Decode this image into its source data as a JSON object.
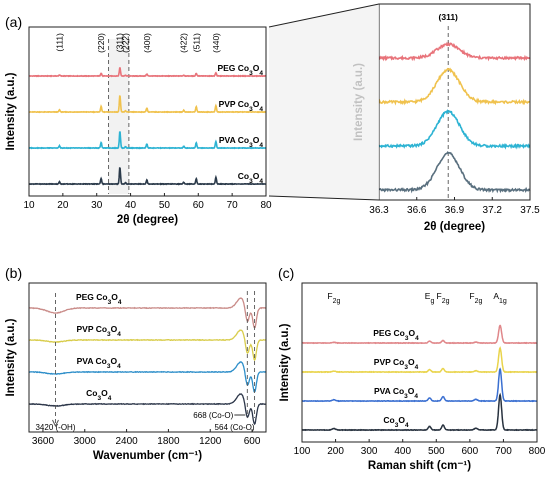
{
  "chart_data": [
    {
      "id": "a",
      "type": "line",
      "panel_label": "(a)",
      "xlabel": "2θ (degree)",
      "ylabel": "Intensity (a.u.)",
      "xlim": [
        10,
        80
      ],
      "x_ticks": [
        10,
        20,
        30,
        40,
        50,
        60,
        70,
        80
      ],
      "peak_labels": [
        {
          "label": "(111)",
          "x": 19.0
        },
        {
          "label": "(220)",
          "x": 31.3
        },
        {
          "label": "(311)",
          "x": 36.8
        },
        {
          "label": "(222)",
          "x": 38.5
        },
        {
          "label": "(400)",
          "x": 44.8
        },
        {
          "label": "(422)",
          "x": 55.7
        },
        {
          "label": "(511)",
          "x": 59.4
        },
        {
          "label": "(440)",
          "x": 65.2
        }
      ],
      "highlight_range": [
        33.5,
        39.5
      ],
      "series": [
        {
          "name": "PEG Co3O4",
          "label_main": "PEG Co",
          "label_sub": "3",
          "label_tail": "O",
          "label_sub2": "4",
          "color": "#e8737a",
          "offset": 3,
          "scale": 0.5
        },
        {
          "name": "PVP Co3O4",
          "label_main": "PVP Co",
          "label_sub": "3",
          "label_tail": "O",
          "label_sub2": "4",
          "color": "#f0c24e",
          "offset": 2,
          "scale": 1.0
        },
        {
          "name": "PVA Co3O4",
          "label_main": "PVA Co",
          "label_sub": "3",
          "label_tail": "O",
          "label_sub2": "4",
          "color": "#2db3d3",
          "offset": 1,
          "scale": 1.0
        },
        {
          "name": "Co3O4",
          "label_main": "Co",
          "label_sub": "3",
          "label_tail": "O",
          "label_sub2": "4",
          "color": "#2b3a4a",
          "offset": 0,
          "scale": 1.0
        }
      ],
      "peaks": [
        {
          "x": 19.0,
          "h": 0.1
        },
        {
          "x": 31.3,
          "h": 0.25
        },
        {
          "x": 36.85,
          "h": 0.75
        },
        {
          "x": 38.5,
          "h": 0.06
        },
        {
          "x": 44.8,
          "h": 0.18
        },
        {
          "x": 55.7,
          "h": 0.08
        },
        {
          "x": 59.4,
          "h": 0.24
        },
        {
          "x": 65.2,
          "h": 0.3
        }
      ]
    },
    {
      "id": "a-zoom",
      "type": "line",
      "xlabel": "2θ (degree)",
      "ylabel": "Intensity (a.u.)",
      "xlim": [
        36.3,
        37.5
      ],
      "x_ticks": [
        "36.3",
        "36.6",
        "36.9",
        "37.2",
        "37.5"
      ],
      "peak_label": "(311)",
      "peak_x": 36.85,
      "series": [
        {
          "name": "PEG Co3O4",
          "color": "#e8737a",
          "offset": 3,
          "height": 0.3
        },
        {
          "name": "PVP Co3O4",
          "color": "#f0c24e",
          "offset": 2,
          "height": 0.7
        },
        {
          "name": "PVA Co3O4",
          "color": "#2db3d3",
          "offset": 1,
          "height": 0.75
        },
        {
          "name": "Co3O4",
          "color": "#596f7e",
          "offset": 0,
          "height": 0.8
        }
      ]
    },
    {
      "id": "b",
      "type": "line",
      "panel_label": "(b)",
      "xlabel": "Wavenumber (cm⁻¹)",
      "ylabel": "Intensity (a.u.)",
      "xlim": [
        3800,
        400
      ],
      "x_ticks": [
        3600,
        3000,
        2400,
        1800,
        1200,
        600
      ],
      "series": [
        {
          "name": "PEG Co3O4",
          "label_main": "PEG Co",
          "label_sub": "3",
          "label_tail": "O",
          "label_sub2": "4",
          "color": "#c98b88",
          "offset": 3
        },
        {
          "name": "PVP Co3O4",
          "label_main": "PVP Co",
          "label_sub": "3",
          "label_tail": "O",
          "label_sub2": "4",
          "color": "#d8cc4a",
          "offset": 2
        },
        {
          "name": "PVA Co3O4",
          "label_main": "PVA Co",
          "label_sub": "3",
          "label_tail": "O",
          "label_sub2": "4",
          "color": "#2d8ec9",
          "offset": 1
        },
        {
          "name": "Co3O4",
          "label_main": "Co",
          "label_sub": "3",
          "label_tail": "O",
          "label_sub2": "4",
          "color": "#2b3548",
          "offset": 0
        }
      ],
      "annotations": [
        {
          "text": "3420 (-OH)",
          "x": 3420
        },
        {
          "text": "668 (Co-O)",
          "x": 668
        },
        {
          "text": "564 (Co-O)",
          "x": 564
        }
      ]
    },
    {
      "id": "c",
      "type": "line",
      "panel_label": "(c)",
      "xlabel": "Raman shift (cm⁻¹)",
      "ylabel": "Intensity (a.u.)",
      "xlim": [
        100,
        800
      ],
      "x_ticks": [
        100,
        200,
        300,
        400,
        500,
        600,
        700,
        800
      ],
      "mode_labels": [
        {
          "main": "F",
          "sub": "2g",
          "x": 195
        },
        {
          "main": "E",
          "sub": "g",
          "x": 480
        },
        {
          "main": "F",
          "sub": "2g",
          "x": 520
        },
        {
          "main": "F",
          "sub": "2g",
          "x": 618
        },
        {
          "main": "A",
          "sub": "1g",
          "x": 690
        }
      ],
      "series": [
        {
          "name": "PEG Co3O4",
          "label_main": "PEG Co",
          "label_sub": "3",
          "label_tail": "O",
          "label_sub2": "4",
          "color": "#e0878a",
          "offset": 3,
          "height": 0.55
        },
        {
          "name": "PVP Co3O4",
          "label_main": "PVP Co",
          "label_sub": "3",
          "label_tail": "O",
          "label_sub2": "4",
          "color": "#e9d44c",
          "offset": 2,
          "height": 0.75
        },
        {
          "name": "PVA Co3O4",
          "label_main": "PVA Co",
          "label_sub": "3",
          "label_tail": "O",
          "label_sub2": "4",
          "color": "#3a6fd1",
          "offset": 1,
          "height": 1.0
        },
        {
          "name": "Co3O4",
          "label_main": "Co",
          "label_sub": "3",
          "label_tail": "O",
          "label_sub2": "4",
          "color": "#28323f",
          "offset": 0,
          "height": 1.1
        }
      ]
    }
  ]
}
